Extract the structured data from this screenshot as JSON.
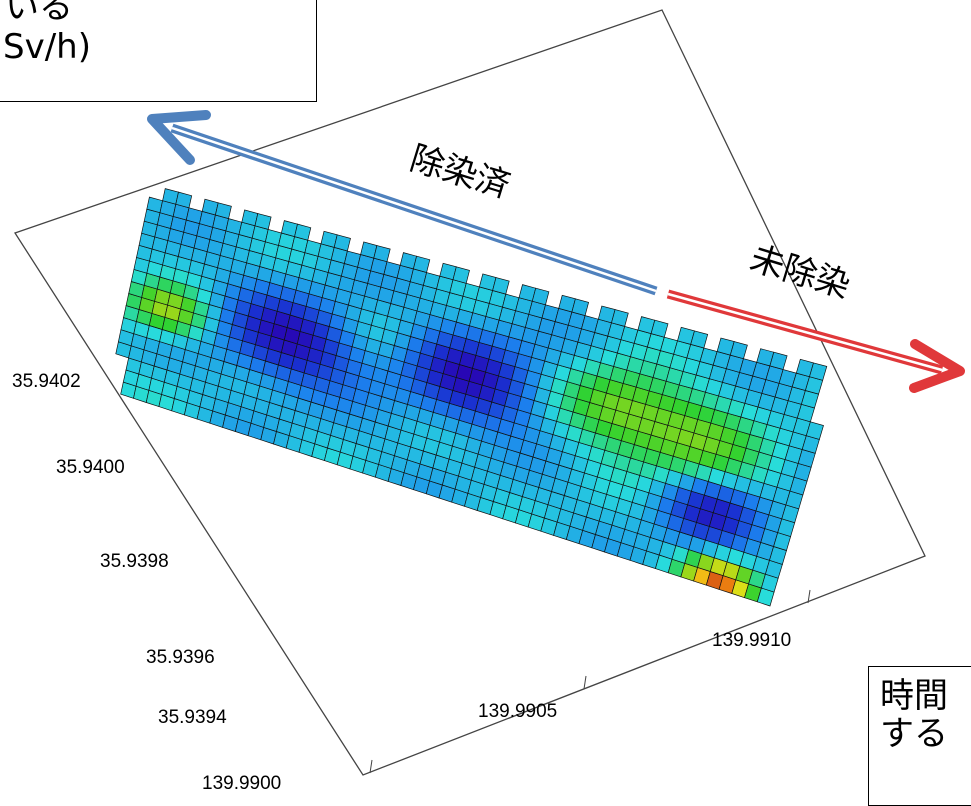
{
  "callouts": {
    "top": {
      "line1": "いる",
      "line2": "Sv/h)"
    },
    "bottom": {
      "line1": "時間",
      "line2": "する"
    }
  },
  "annotations": {
    "decontaminated": "除染済",
    "not_decontaminated": "未除染"
  },
  "colors": {
    "decontaminated_arrow": "#4f81bd",
    "not_decontaminated_arrow": "#e0383a",
    "colormap": [
      "#2a00b0",
      "#1a30d0",
      "#1c80ee",
      "#28dcdc",
      "#30d230",
      "#a8d818",
      "#f2e018",
      "#f08a10",
      "#c02a18"
    ]
  },
  "chart_data": {
    "type": "heatmap",
    "view": "3D surface, viewed from above, rotated axes",
    "x_axis": {
      "ticks": [
        {
          "label": "139.9900",
          "value": 139.99
        },
        {
          "label": "139.9905",
          "value": 139.9905
        },
        {
          "label": "139.9910",
          "value": 139.991
        }
      ]
    },
    "y_axis": {
      "ticks": [
        {
          "label": "35.9394",
          "value": 35.9394
        },
        {
          "label": "35.9396",
          "value": 35.9396
        },
        {
          "label": "35.9398",
          "value": 35.9398
        },
        {
          "label": "35.9400",
          "value": 35.94
        },
        {
          "label": "35.9402",
          "value": 35.9402
        }
      ]
    },
    "grid": {
      "cols": 52,
      "rows": 17
    },
    "value_scale": [
      0,
      1
    ],
    "hotspots": [
      {
        "u": 0.06,
        "v": 0.45,
        "level": 0.62,
        "spread": 0.035
      },
      {
        "u": 0.24,
        "v": 0.48,
        "level": 0.04,
        "spread": 0.06
      },
      {
        "u": 0.5,
        "v": 0.55,
        "level": 0.05,
        "spread": 0.06
      },
      {
        "u": 0.37,
        "v": 0.62,
        "level": 0.38,
        "spread": 0.045
      },
      {
        "u": 0.71,
        "v": 0.6,
        "level": 0.55,
        "spread": 0.05
      },
      {
        "u": 0.83,
        "v": 0.55,
        "level": 0.55,
        "spread": 0.06
      },
      {
        "u": 0.88,
        "v": 0.3,
        "level": 0.08,
        "spread": 0.045
      },
      {
        "u": 0.92,
        "v": 0.02,
        "level": 0.92,
        "spread": 0.03
      },
      {
        "u": 0.02,
        "v": 0.05,
        "level": 0.35,
        "spread": 0.06
      }
    ],
    "base_level": 0.33
  }
}
